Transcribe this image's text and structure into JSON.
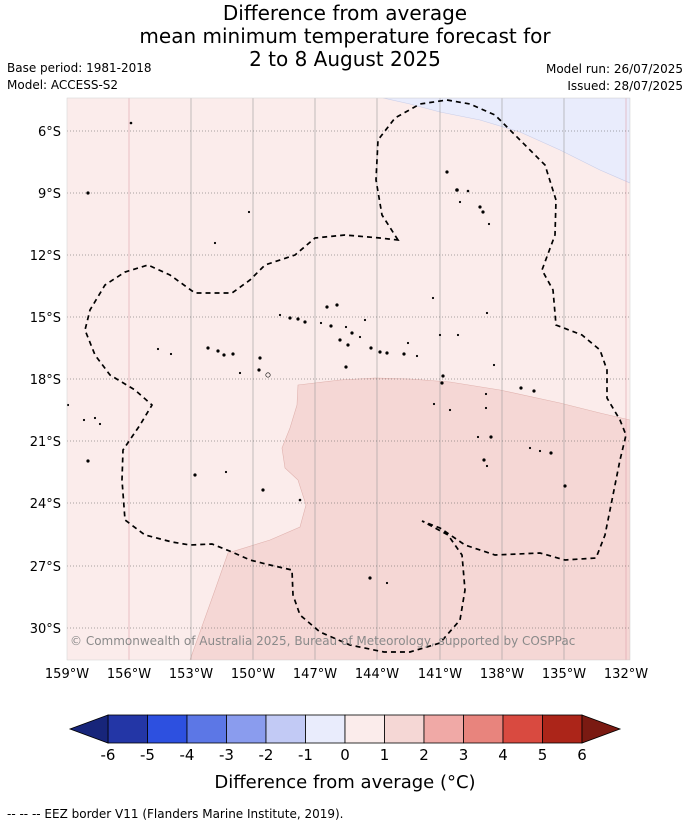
{
  "title": {
    "line1": "Difference from average",
    "line2": "mean minimum temperature forecast for",
    "line3": "2 to 8 August 2025"
  },
  "meta": {
    "base_period": "Base period: 1981-2018",
    "model": "Model: ACCESS-S2",
    "model_run": "Model run: 26/07/2025",
    "issued": "Issued: 28/07/2025"
  },
  "map": {
    "lon_labels": [
      "159°W",
      "156°W",
      "153°W",
      "150°W",
      "147°W",
      "144°W",
      "141°W",
      "138°W",
      "135°W",
      "132°W"
    ],
    "lat_labels": [
      "6°S",
      "9°S",
      "12°S",
      "15°S",
      "18°S",
      "21°S",
      "24°S",
      "27°S",
      "30°S"
    ],
    "copyright": "© Commonwealth of Australia 2025, Bureau of Meteorology, supported by COSPPac",
    "fill_colors": {
      "anom_0_1": "#fbeceb",
      "anom_1_2": "#f5d7d5",
      "anom_m1_0": "#e9ecfc"
    }
  },
  "colorbar": {
    "ticks": [
      "-6",
      "-5",
      "-4",
      "-3",
      "-2",
      "-1",
      "0",
      "1",
      "2",
      "3",
      "4",
      "5",
      "6"
    ],
    "colors": [
      "#2336a6",
      "#2d50e0",
      "#5c77e6",
      "#8a9cee",
      "#c2caf5",
      "#e9ecfc",
      "#fbeceb",
      "#f5d7d5",
      "#f0a9a6",
      "#e8847d",
      "#d94a40",
      "#ac2519"
    ],
    "low_extend_color": "#17257a",
    "high_extend_color": "#7a1a12",
    "label": "Difference from average (°C)"
  },
  "footnote": "-- -- -- EEZ border V11 (Flanders Marine Institute, 2019)."
}
